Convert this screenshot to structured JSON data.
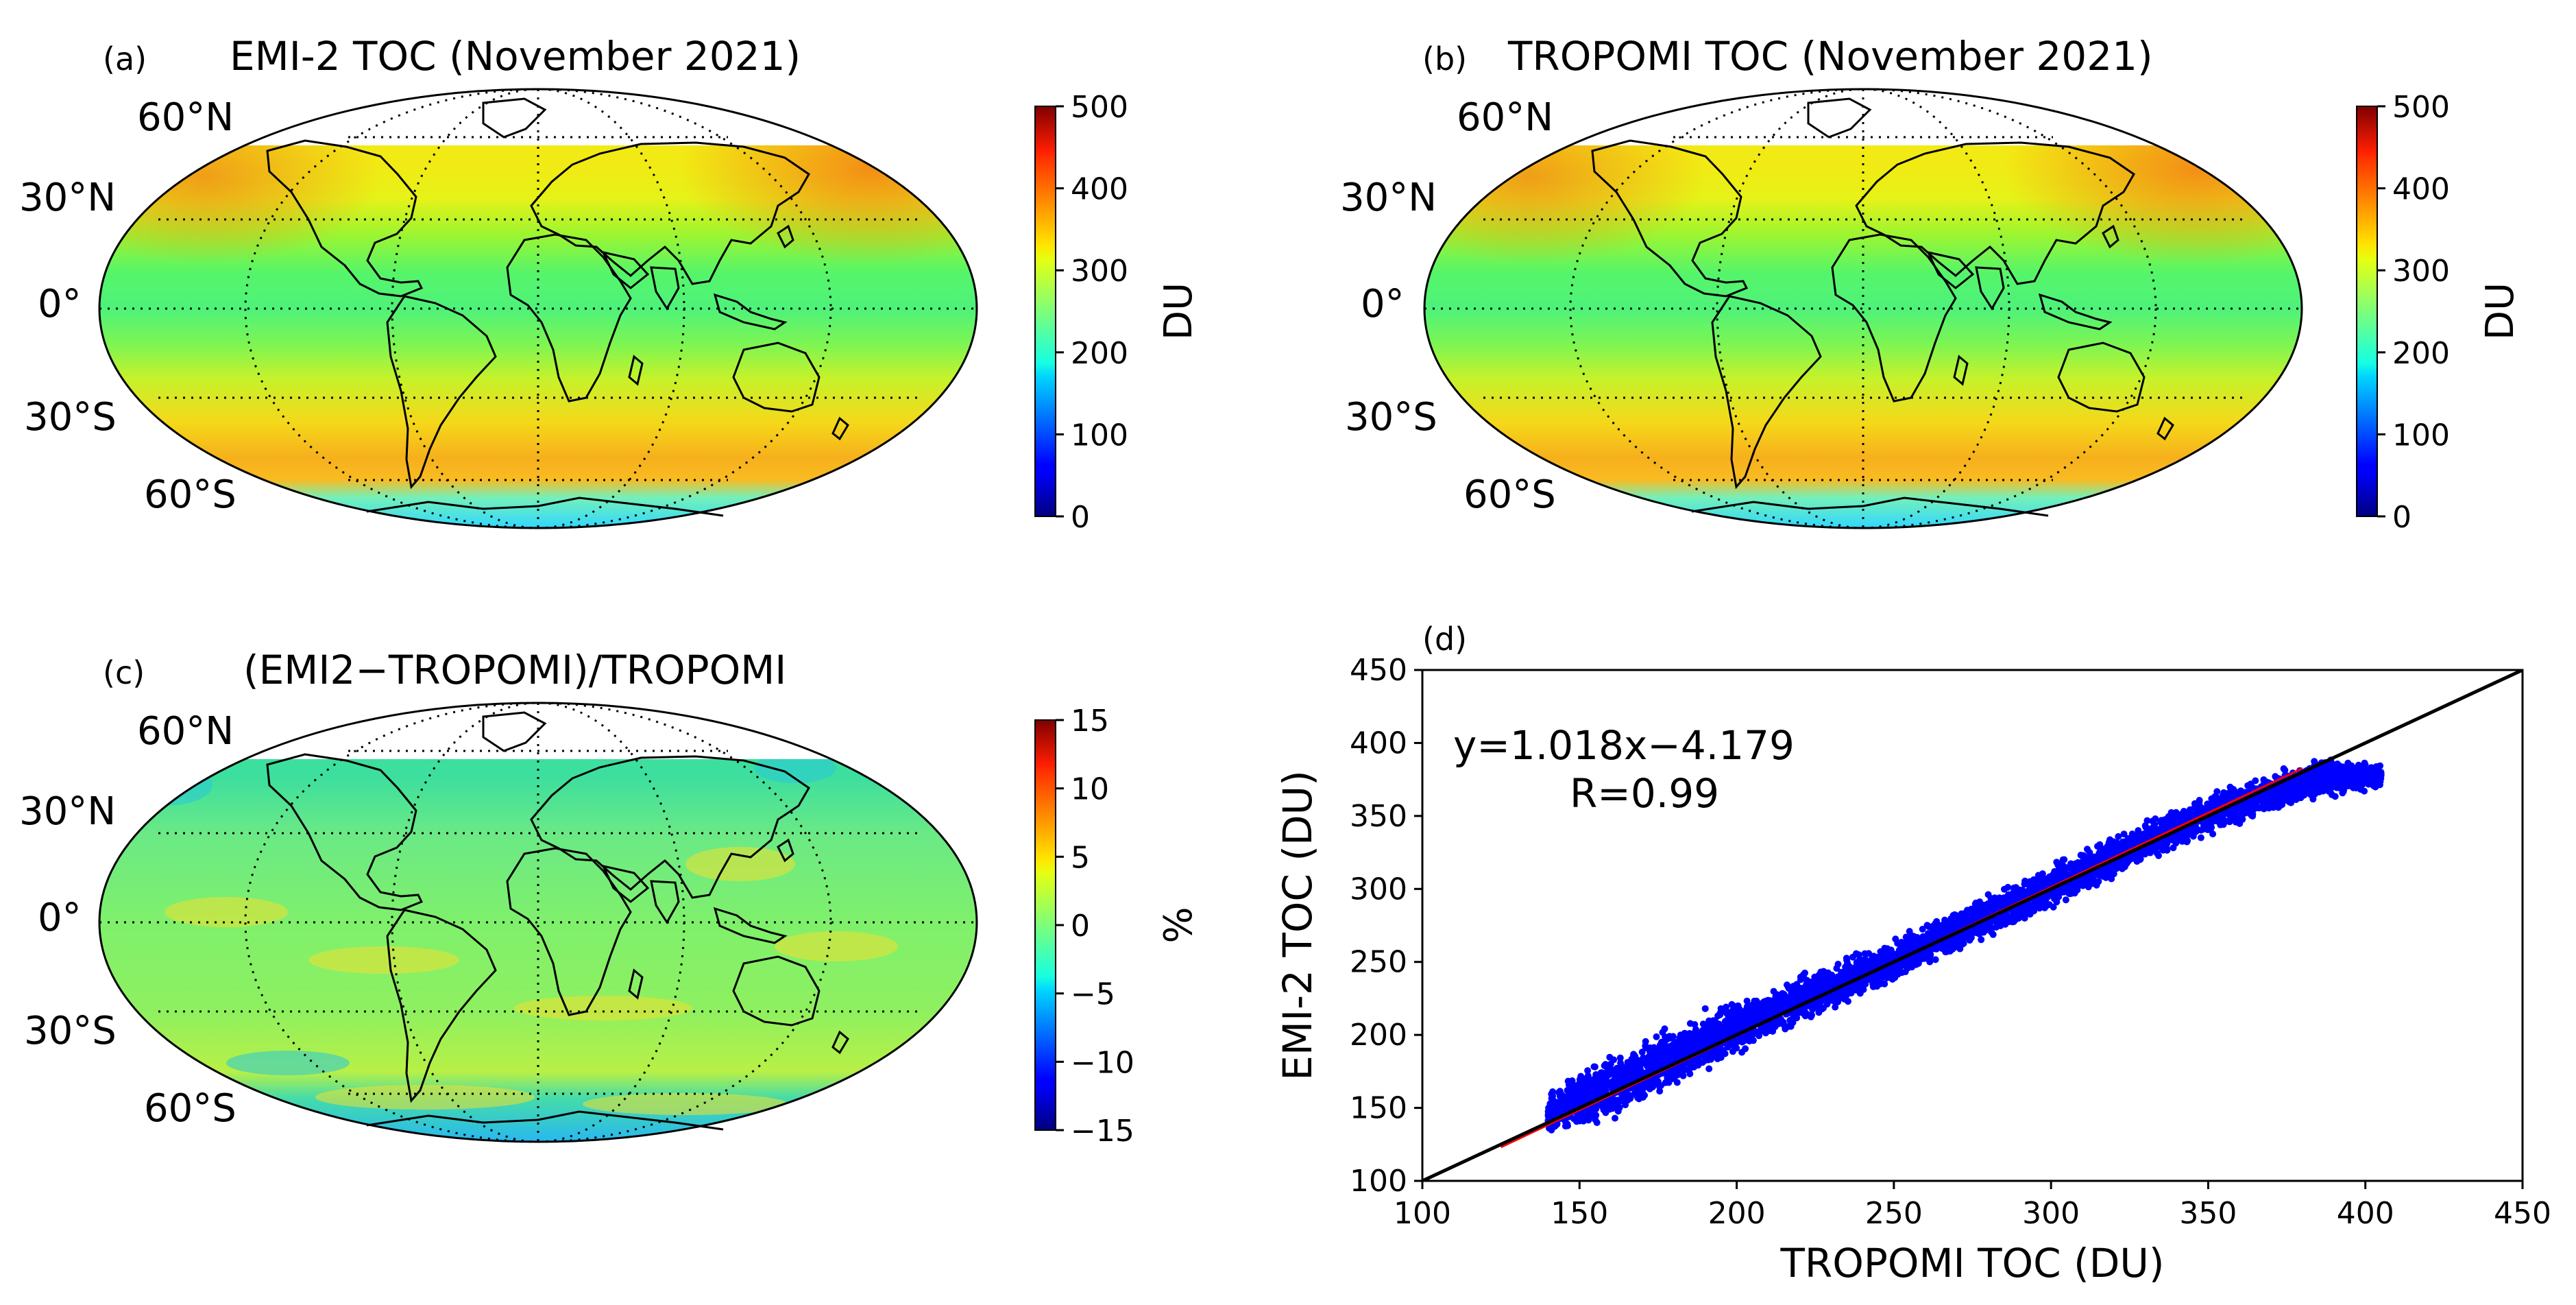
{
  "panels": {
    "a": {
      "tag": "(a)",
      "title": "EMI-2 TOC (November 2021)",
      "lat_labels": [
        "60°N",
        "30°N",
        "0°",
        "30°S",
        "60°S"
      ],
      "colorbar": {
        "ticks": [
          "0",
          "100",
          "200",
          "300",
          "400",
          "500"
        ],
        "label": "DU",
        "range": [
          0,
          500
        ]
      }
    },
    "b": {
      "tag": "(b)",
      "title": "TROPOMI TOC (November 2021)",
      "lat_labels": [
        "60°N",
        "30°N",
        "0°",
        "30°S",
        "60°S"
      ],
      "colorbar": {
        "ticks": [
          "0",
          "100",
          "200",
          "300",
          "400",
          "500"
        ],
        "label": "DU",
        "range": [
          0,
          500
        ]
      }
    },
    "c": {
      "tag": "(c)",
      "title": "(EMI2−TROPOMI)/TROPOMI",
      "lat_labels": [
        "60°N",
        "30°N",
        "0°",
        "30°S",
        "60°S"
      ],
      "colorbar": {
        "ticks": [
          "−15",
          "−10",
          "−5",
          "0",
          "5",
          "10",
          "15"
        ],
        "label": "%",
        "range": [
          -15,
          15
        ]
      }
    },
    "d": {
      "tag": "(d)"
    }
  },
  "chart_data": [
    {
      "type": "heatmap",
      "panel": "a",
      "title": "EMI-2 TOC (November 2021)",
      "projection": "Mollweide",
      "units": "DU",
      "colorbar_range": [
        0,
        500
      ],
      "zonal_mean_profile": [
        {
          "lat": 45,
          "value": 310
        },
        {
          "lat": 40,
          "value": 305
        },
        {
          "lat": 30,
          "value": 285
        },
        {
          "lat": 15,
          "value": 262
        },
        {
          "lat": 0,
          "value": 255
        },
        {
          "lat": -15,
          "value": 265
        },
        {
          "lat": -30,
          "value": 300
        },
        {
          "lat": -45,
          "value": 340
        },
        {
          "lat": -55,
          "value": 345
        },
        {
          "lat": -65,
          "value": 260
        },
        {
          "lat": -75,
          "value": 210
        }
      ]
    },
    {
      "type": "heatmap",
      "panel": "b",
      "title": "TROPOMI TOC (November 2021)",
      "projection": "Mollweide",
      "units": "DU",
      "colorbar_range": [
        0,
        500
      ],
      "zonal_mean_profile": [
        {
          "lat": 45,
          "value": 315
        },
        {
          "lat": 40,
          "value": 308
        },
        {
          "lat": 30,
          "value": 288
        },
        {
          "lat": 15,
          "value": 265
        },
        {
          "lat": 0,
          "value": 258
        },
        {
          "lat": -15,
          "value": 268
        },
        {
          "lat": -30,
          "value": 303
        },
        {
          "lat": -45,
          "value": 345
        },
        {
          "lat": -55,
          "value": 350
        },
        {
          "lat": -65,
          "value": 265
        },
        {
          "lat": -75,
          "value": 215
        }
      ]
    },
    {
      "type": "heatmap",
      "panel": "c",
      "title": "(EMI2−TROPOMI)/TROPOMI",
      "projection": "Mollweide",
      "units": "%",
      "colorbar_range": [
        -15,
        15
      ],
      "zonal_mean_profile": [
        {
          "lat": 45,
          "value": -1
        },
        {
          "lat": 30,
          "value": 0
        },
        {
          "lat": 0,
          "value": 0.5
        },
        {
          "lat": -30,
          "value": 0.5
        },
        {
          "lat": -55,
          "value": 2
        },
        {
          "lat": -70,
          "value": -4
        }
      ]
    },
    {
      "type": "scatter",
      "panel": "d",
      "title": "",
      "xlabel": "TROPOMI TOC (DU)",
      "ylabel": "EMI-2 TOC (DU)",
      "xlim": [
        100,
        450
      ],
      "ylim": [
        100,
        450
      ],
      "xticks": [
        100,
        150,
        200,
        250,
        300,
        350,
        400,
        450
      ],
      "yticks": [
        100,
        150,
        200,
        250,
        300,
        350,
        400,
        450
      ],
      "equation": "y=1.018x−4.179",
      "r_text": "R=0.99",
      "slope": 1.018,
      "intercept": -4.179,
      "fit_x_range": [
        125,
        380
      ],
      "point_cloud_envelope": [
        {
          "x": 140,
          "low": 130,
          "high": 162
        },
        {
          "x": 160,
          "low": 138,
          "high": 190
        },
        {
          "x": 195,
          "low": 178,
          "high": 222
        },
        {
          "x": 250,
          "low": 235,
          "high": 268
        },
        {
          "x": 300,
          "low": 285,
          "high": 318
        },
        {
          "x": 350,
          "low": 335,
          "high": 368
        },
        {
          "x": 385,
          "low": 360,
          "high": 392
        },
        {
          "x": 405,
          "low": 368,
          "high": 388
        }
      ],
      "series": [
        {
          "name": "samples",
          "points": [
            [
              143,
              152
            ],
            [
              150,
              147
            ],
            [
              155,
              142
            ],
            [
              158,
              158
            ],
            [
              162,
              172
            ],
            [
              165,
              158
            ],
            [
              170,
              182
            ],
            [
              175,
              168
            ],
            [
              180,
              176
            ],
            [
              185,
              192
            ],
            [
              190,
              218
            ],
            [
              195,
              218
            ],
            [
              198,
              200
            ],
            [
              205,
              200
            ],
            [
              210,
              214
            ],
            [
              220,
              222
            ],
            [
              230,
              232
            ],
            [
              240,
              240
            ],
            [
              250,
              252
            ],
            [
              260,
              260
            ],
            [
              270,
              272
            ],
            [
              280,
              282
            ],
            [
              290,
              290
            ],
            [
              300,
              302
            ],
            [
              310,
              312
            ],
            [
              320,
              320
            ],
            [
              330,
              334
            ],
            [
              340,
              344
            ],
            [
              350,
              352
            ],
            [
              360,
              362
            ],
            [
              370,
              372
            ],
            [
              380,
              378
            ],
            [
              390,
              384
            ],
            [
              400,
              380
            ],
            [
              405,
              378
            ]
          ]
        }
      ],
      "lines": [
        {
          "name": "1:1 line",
          "color": "#000000",
          "x": [
            100,
            450
          ],
          "y": [
            100,
            450
          ]
        },
        {
          "name": "regression",
          "color": "#ff0000",
          "x": [
            125,
            380
          ],
          "y": [
            123.07,
            382.66
          ]
        }
      ]
    }
  ],
  "colors": {
    "scatter": "#0000ff",
    "one_to_one": "#000000",
    "regression": "#ff0000"
  }
}
